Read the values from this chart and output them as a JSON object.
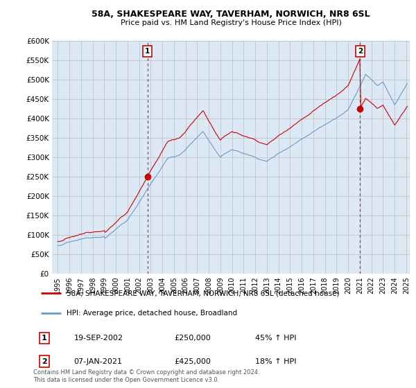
{
  "title": "58A, SHAKESPEARE WAY, TAVERHAM, NORWICH, NR8 6SL",
  "subtitle": "Price paid vs. HM Land Registry's House Price Index (HPI)",
  "hpi_label": "HPI: Average price, detached house, Broadland",
  "property_label": "58A, SHAKESPEARE WAY, TAVERHAM, NORWICH, NR8 6SL (detached house)",
  "sale1_date": "19-SEP-2002",
  "sale1_price": "£250,000",
  "sale1_hpi": "45% ↑ HPI",
  "sale2_date": "07-JAN-2021",
  "sale2_price": "£425,000",
  "sale2_hpi": "18% ↑ HPI",
  "footer": "Contains HM Land Registry data © Crown copyright and database right 2024.\nThis data is licensed under the Open Government Licence v3.0.",
  "property_color": "#cc0000",
  "hpi_color": "#6699cc",
  "background_color": "#ffffff",
  "plot_bg_color": "#dce9f5",
  "sale1_x": 2002.72,
  "sale1_y": 250000,
  "sale2_x": 2021.02,
  "sale2_y": 425000,
  "xlim_left": 1994.5,
  "xlim_right": 2025.3,
  "ylim_top": 600000,
  "yticks": [
    0,
    50000,
    100000,
    150000,
    200000,
    250000,
    300000,
    350000,
    400000,
    450000,
    500000,
    550000,
    600000
  ]
}
